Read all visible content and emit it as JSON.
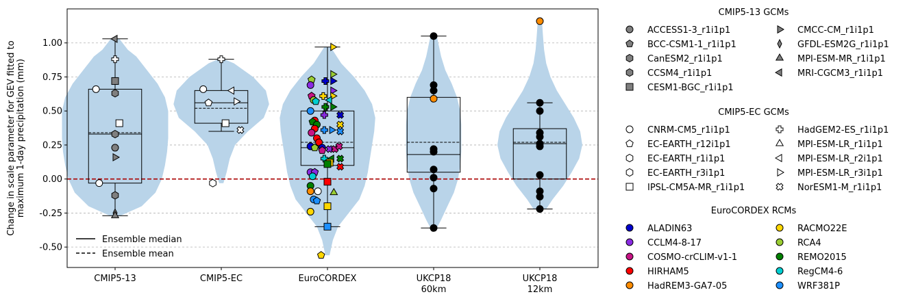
{
  "chart_data": {
    "type": "violin",
    "ylabel_lines": [
      "Change in scale parameter for GEV fitted to",
      "maximum 1-day precipitation (mm)"
    ],
    "ylim": [
      -0.65,
      1.25
    ],
    "yticks": [
      "-0.50",
      "-0.25",
      "0.00",
      "0.25",
      "0.50",
      "0.75",
      "1.00"
    ],
    "ytick_values": [
      -0.5,
      -0.25,
      0,
      0.25,
      0.5,
      0.75,
      1.0
    ],
    "grid": "y-dashed",
    "zero_line_color": "#aa0000",
    "violin_color": "#b9d4e9",
    "categories": [
      "CMIP5-13",
      "CMIP5-EC",
      "EuroCORDEX",
      "UKCP18\n60km",
      "UKCP18\n12km"
    ],
    "category_lines": [
      [
        "CMIP5-13"
      ],
      [
        "CMIP5-EC"
      ],
      [
        "EuroCORDEX"
      ],
      [
        "UKCP18",
        "60km"
      ],
      [
        "UKCP18",
        "12km"
      ]
    ],
    "boxes": [
      {
        "q1": -0.03,
        "q3": 0.66,
        "median": 0.33,
        "mean": 0.34,
        "wlo": -0.27,
        "whi": 1.03
      },
      {
        "q1": 0.41,
        "q3": 0.65,
        "median": 0.56,
        "mean": 0.52,
        "wlo": 0.35,
        "whi": 0.88
      },
      {
        "q1": 0.1,
        "q3": 0.5,
        "median": 0.23,
        "mean": 0.27,
        "wlo": -0.35,
        "whi": 0.97
      },
      {
        "q1": 0.05,
        "q3": 0.6,
        "median": 0.18,
        "mean": 0.27,
        "wlo": -0.36,
        "whi": 1.05
      },
      {
        "q1": 0.0,
        "q3": 0.37,
        "median": 0.26,
        "mean": 0.27,
        "wlo": -0.22,
        "whi": 0.56
      }
    ],
    "violins": [
      {
        "y": [
          -0.27,
          -0.2,
          -0.1,
          0.0,
          0.1,
          0.2,
          0.3,
          0.4,
          0.5,
          0.6,
          0.7,
          0.8,
          0.9,
          0.95,
          1.03
        ],
        "w": [
          0.05,
          0.25,
          0.38,
          0.44,
          0.47,
          0.49,
          0.5,
          0.5,
          0.5,
          0.47,
          0.4,
          0.3,
          0.2,
          0.12,
          0.04
        ]
      },
      {
        "y": [
          -0.03,
          0.05,
          0.15,
          0.25,
          0.35,
          0.45,
          0.55,
          0.65,
          0.75,
          0.85,
          0.88
        ],
        "w": [
          0.02,
          0.05,
          0.08,
          0.13,
          0.25,
          0.4,
          0.45,
          0.42,
          0.3,
          0.12,
          0.03
        ]
      },
      {
        "y": [
          -0.56,
          -0.45,
          -0.35,
          -0.25,
          -0.15,
          -0.05,
          0.05,
          0.15,
          0.25,
          0.35,
          0.45,
          0.55,
          0.65,
          0.75,
          0.85,
          0.97
        ],
        "w": [
          0.02,
          0.05,
          0.1,
          0.2,
          0.3,
          0.35,
          0.38,
          0.4,
          0.42,
          0.44,
          0.45,
          0.42,
          0.35,
          0.25,
          0.13,
          0.03
        ]
      },
      {
        "y": [
          -0.36,
          -0.3,
          -0.2,
          -0.1,
          0.0,
          0.1,
          0.2,
          0.3,
          0.4,
          0.5,
          0.6,
          0.7,
          0.8,
          0.9,
          1.05
        ],
        "w": [
          0.03,
          0.07,
          0.13,
          0.19,
          0.23,
          0.25,
          0.26,
          0.26,
          0.26,
          0.25,
          0.22,
          0.17,
          0.11,
          0.07,
          0.03
        ]
      },
      {
        "y": [
          -0.22,
          -0.15,
          -0.05,
          0.05,
          0.15,
          0.25,
          0.35,
          0.45,
          0.55,
          0.65,
          0.75,
          0.85,
          0.95,
          1.05,
          1.16
        ],
        "w": [
          0.06,
          0.12,
          0.22,
          0.3,
          0.37,
          0.4,
          0.38,
          0.32,
          0.24,
          0.16,
          0.1,
          0.06,
          0.04,
          0.03,
          0.02
        ]
      }
    ],
    "points": [
      {
        "g": 0,
        "dx": -0.18,
        "y": 0.66,
        "m": "circle",
        "c": "#ffffff"
      },
      {
        "g": 0,
        "dx": 0.0,
        "y": 0.72,
        "m": "square",
        "c": "#7f7f7f"
      },
      {
        "g": 0,
        "dx": 0.0,
        "y": 0.63,
        "m": "hexagon",
        "c": "#7f7f7f"
      },
      {
        "g": 0,
        "dx": 0.0,
        "y": 0.88,
        "m": "plus",
        "c": "#ffffff"
      },
      {
        "g": 0,
        "dx": 0.0,
        "y": 1.03,
        "m": "triLeft",
        "c": "#7f7f7f"
      },
      {
        "g": 0,
        "dx": 0.04,
        "y": 0.41,
        "m": "square",
        "c": "#ffffff"
      },
      {
        "g": 0,
        "dx": 0.0,
        "y": 0.33,
        "m": "hexagon",
        "c": "#7f7f7f"
      },
      {
        "g": 0,
        "dx": 0.0,
        "y": 0.23,
        "m": "circle",
        "c": "#7f7f7f"
      },
      {
        "g": 0,
        "dx": 0.0,
        "y": 0.16,
        "m": "triRight",
        "c": "#7f7f7f"
      },
      {
        "g": 0,
        "dx": -0.15,
        "y": -0.03,
        "m": "circle",
        "c": "#ffffff"
      },
      {
        "g": 0,
        "dx": 0.0,
        "y": -0.12,
        "m": "hexagon",
        "c": "#7f7f7f"
      },
      {
        "g": 0,
        "dx": 0.0,
        "y": -0.25,
        "m": "diamond",
        "c": "#7f7f7f"
      },
      {
        "g": 0,
        "dx": 0.0,
        "y": -0.27,
        "m": "triUp",
        "c": "#7f7f7f"
      },
      {
        "g": 1,
        "dx": 0.0,
        "y": 0.88,
        "m": "plus",
        "c": "#ffffff"
      },
      {
        "g": 1,
        "dx": -0.17,
        "y": 0.66,
        "m": "circle",
        "c": "#ffffff"
      },
      {
        "g": 1,
        "dx": 0.1,
        "y": 0.65,
        "m": "triLeft",
        "c": "#ffffff"
      },
      {
        "g": 1,
        "dx": 0.14,
        "y": 0.57,
        "m": "triRight",
        "c": "#ffffff"
      },
      {
        "g": 1,
        "dx": -0.12,
        "y": 0.56,
        "m": "pentagon",
        "c": "#ffffff"
      },
      {
        "g": 1,
        "dx": 0.04,
        "y": 0.41,
        "m": "square",
        "c": "#ffffff"
      },
      {
        "g": 1,
        "dx": 0.18,
        "y": 0.36,
        "m": "cross",
        "c": "#ffffff"
      },
      {
        "g": 1,
        "dx": -0.08,
        "y": -0.03,
        "m": "hexagon",
        "c": "#ffffff"
      },
      {
        "g": 2,
        "dx": 0.05,
        "y": 0.97,
        "m": "triRight",
        "c": "#ffd700"
      },
      {
        "g": 2,
        "dx": 0.05,
        "y": 0.77,
        "m": "triRight",
        "c": "#9acd32"
      },
      {
        "g": 2,
        "dx": -0.15,
        "y": 0.73,
        "m": "pentagon",
        "c": "#9acd32"
      },
      {
        "g": 2,
        "dx": -0.02,
        "y": 0.72,
        "m": "plus",
        "c": "#0000cc"
      },
      {
        "g": 2,
        "dx": 0.05,
        "y": 0.72,
        "m": "triRight",
        "c": "#0000cc"
      },
      {
        "g": 2,
        "dx": -0.16,
        "y": 0.69,
        "m": "circle",
        "c": "#8a2be2"
      },
      {
        "g": 2,
        "dx": 0.05,
        "y": 0.65,
        "m": "triRight",
        "c": "#8a2be2"
      },
      {
        "g": 2,
        "dx": -0.15,
        "y": 0.61,
        "m": "pentagon",
        "c": "#c71585"
      },
      {
        "g": 2,
        "dx": -0.04,
        "y": 0.61,
        "m": "plus",
        "c": "#ffd700"
      },
      {
        "g": 2,
        "dx": 0.05,
        "y": 0.61,
        "m": "triRight",
        "c": "#ffd700"
      },
      {
        "g": 2,
        "dx": -0.13,
        "y": 0.58,
        "m": "circle",
        "c": "#9acd32"
      },
      {
        "g": 2,
        "dx": 0.02,
        "y": 0.58,
        "m": "triLeft",
        "c": "#00ced1"
      },
      {
        "g": 2,
        "dx": -0.11,
        "y": 0.57,
        "m": "pentagon",
        "c": "#00ced1"
      },
      {
        "g": 2,
        "dx": -0.02,
        "y": 0.53,
        "m": "plus",
        "c": "#008000"
      },
      {
        "g": 2,
        "dx": 0.05,
        "y": 0.53,
        "m": "triRight",
        "c": "#008000"
      },
      {
        "g": 2,
        "dx": -0.16,
        "y": 0.5,
        "m": "circle",
        "c": "#1e90ff"
      },
      {
        "g": 2,
        "dx": -0.12,
        "y": 0.43,
        "m": "circle",
        "c": "#ff0000"
      },
      {
        "g": 2,
        "dx": -0.14,
        "y": 0.42,
        "m": "pentagon",
        "c": "#008000"
      },
      {
        "g": 2,
        "dx": -0.03,
        "y": 0.47,
        "m": "plus",
        "c": "#8a2be2"
      },
      {
        "g": 2,
        "dx": 0.12,
        "y": 0.47,
        "m": "cross",
        "c": "#0000cc"
      },
      {
        "g": 2,
        "dx": -0.1,
        "y": 0.4,
        "m": "circle",
        "c": "#008000"
      },
      {
        "g": 2,
        "dx": 0.12,
        "y": 0.4,
        "m": "cross",
        "c": "#ffd700"
      },
      {
        "g": 2,
        "dx": -0.12,
        "y": 0.37,
        "m": "circle",
        "c": "#ff0000"
      },
      {
        "g": 2,
        "dx": -0.03,
        "y": 0.36,
        "m": "plus",
        "c": "#1e90ff"
      },
      {
        "g": 2,
        "dx": 0.04,
        "y": 0.36,
        "m": "triRight",
        "c": "#1e90ff"
      },
      {
        "g": 2,
        "dx": 0.12,
        "y": 0.35,
        "m": "cross",
        "c": "#1e90ff"
      },
      {
        "g": 2,
        "dx": -0.15,
        "y": 0.34,
        "m": "circle",
        "c": "#c71585"
      },
      {
        "g": 2,
        "dx": -0.1,
        "y": 0.3,
        "m": "circle",
        "c": "#ff0000"
      },
      {
        "g": 2,
        "dx": -0.08,
        "y": 0.27,
        "m": "circle",
        "c": "#ff0000"
      },
      {
        "g": 2,
        "dx": -0.16,
        "y": 0.24,
        "m": "circle",
        "c": "#0000cc"
      },
      {
        "g": 2,
        "dx": -0.12,
        "y": 0.23,
        "m": "pentagon",
        "c": "#9acd32"
      },
      {
        "g": 2,
        "dx": -0.05,
        "y": 0.23,
        "m": "circle",
        "c": "#0000cc"
      },
      {
        "g": 2,
        "dx": 0.02,
        "y": 0.22,
        "m": "cross",
        "c": "#8a2be2"
      },
      {
        "g": 2,
        "dx": 0.07,
        "y": 0.22,
        "m": "cross",
        "c": "#c71585"
      },
      {
        "g": 2,
        "dx": 0.11,
        "y": 0.24,
        "m": "cross",
        "c": "#c71585"
      },
      {
        "g": 2,
        "dx": -0.05,
        "y": 0.21,
        "m": "pentagon",
        "c": "#c71585"
      },
      {
        "g": 2,
        "dx": -0.03,
        "y": 0.15,
        "m": "plus",
        "c": "#00ced1"
      },
      {
        "g": 2,
        "dx": 0.04,
        "y": 0.15,
        "m": "triLeft",
        "c": "#008000"
      },
      {
        "g": 2,
        "dx": 0.12,
        "y": 0.15,
        "m": "cross",
        "c": "#008000"
      },
      {
        "g": 2,
        "dx": 0.02,
        "y": 0.12,
        "m": "square",
        "c": "#ffd700"
      },
      {
        "g": 2,
        "dx": 0.0,
        "y": 0.11,
        "m": "square",
        "c": "#008000"
      },
      {
        "g": 2,
        "dx": 0.12,
        "y": 0.09,
        "m": "cross",
        "c": "#ff0000"
      },
      {
        "g": 2,
        "dx": -0.16,
        "y": 0.05,
        "m": "circle",
        "c": "#8a2be2"
      },
      {
        "g": 2,
        "dx": -0.12,
        "y": 0.05,
        "m": "pentagon",
        "c": "#8a2be2"
      },
      {
        "g": 2,
        "dx": -0.14,
        "y": 0.02,
        "m": "circle",
        "c": "#00ced1"
      },
      {
        "g": 2,
        "dx": 0.0,
        "y": -0.02,
        "m": "square",
        "c": "#ff0000"
      },
      {
        "g": 2,
        "dx": -0.16,
        "y": -0.05,
        "m": "circle",
        "c": "#008000"
      },
      {
        "g": 2,
        "dx": -0.16,
        "y": -0.09,
        "m": "circle",
        "c": "#ff8c00"
      },
      {
        "g": 2,
        "dx": -0.09,
        "y": -0.09,
        "m": "circle",
        "c": "#ffffff"
      },
      {
        "g": 2,
        "dx": 0.06,
        "y": -0.1,
        "m": "triUp",
        "c": "#9acd32"
      },
      {
        "g": 2,
        "dx": -0.13,
        "y": -0.15,
        "m": "circle",
        "c": "#1e90ff"
      },
      {
        "g": 2,
        "dx": -0.1,
        "y": -0.16,
        "m": "pentagon",
        "c": "#1e90ff"
      },
      {
        "g": 2,
        "dx": 0.0,
        "y": -0.2,
        "m": "square",
        "c": "#ffd700"
      },
      {
        "g": 2,
        "dx": -0.16,
        "y": -0.24,
        "m": "circle",
        "c": "#ffd700"
      },
      {
        "g": 2,
        "dx": 0.0,
        "y": -0.35,
        "m": "square",
        "c": "#1e90ff"
      },
      {
        "g": 2,
        "dx": -0.06,
        "y": -0.56,
        "m": "pentagon",
        "c": "#ffd700"
      },
      {
        "g": 3,
        "dx": 0.0,
        "y": 1.05,
        "m": "circle",
        "c": "#000000"
      },
      {
        "g": 3,
        "dx": 0.0,
        "y": 0.69,
        "m": "circle",
        "c": "#000000"
      },
      {
        "g": 3,
        "dx": 0.0,
        "y": 0.65,
        "m": "circle",
        "c": "#000000"
      },
      {
        "g": 3,
        "dx": 0.0,
        "y": 0.59,
        "m": "circle",
        "c": "#ff8c00"
      },
      {
        "g": 3,
        "dx": 0.0,
        "y": 0.22,
        "m": "circle",
        "c": "#000000"
      },
      {
        "g": 3,
        "dx": 0.0,
        "y": 0.2,
        "m": "circle",
        "c": "#000000"
      },
      {
        "g": 3,
        "dx": 0.0,
        "y": 0.07,
        "m": "circle",
        "c": "#000000"
      },
      {
        "g": 3,
        "dx": 0.0,
        "y": 0.01,
        "m": "circle",
        "c": "#000000"
      },
      {
        "g": 3,
        "dx": 0.0,
        "y": -0.07,
        "m": "circle",
        "c": "#000000"
      },
      {
        "g": 3,
        "dx": 0.0,
        "y": -0.36,
        "m": "circle",
        "c": "#000000"
      },
      {
        "g": 4,
        "dx": 0.0,
        "y": 1.16,
        "m": "circle",
        "c": "#ff8c00"
      },
      {
        "g": 4,
        "dx": 0.0,
        "y": 0.56,
        "m": "circle",
        "c": "#000000"
      },
      {
        "g": 4,
        "dx": 0.0,
        "y": 0.5,
        "m": "circle",
        "c": "#000000"
      },
      {
        "g": 4,
        "dx": 0.0,
        "y": 0.34,
        "m": "circle",
        "c": "#000000"
      },
      {
        "g": 4,
        "dx": 0.0,
        "y": 0.31,
        "m": "circle",
        "c": "#000000"
      },
      {
        "g": 4,
        "dx": 0.0,
        "y": 0.26,
        "m": "circle",
        "c": "#000000"
      },
      {
        "g": 4,
        "dx": 0.0,
        "y": 0.24,
        "m": "circle",
        "c": "#000000"
      },
      {
        "g": 4,
        "dx": 0.0,
        "y": 0.03,
        "m": "circle",
        "c": "#000000"
      },
      {
        "g": 4,
        "dx": 0.0,
        "y": -0.09,
        "m": "circle",
        "c": "#000000"
      },
      {
        "g": 4,
        "dx": 0.0,
        "y": -0.13,
        "m": "circle",
        "c": "#000000"
      },
      {
        "g": 4,
        "dx": 0.0,
        "y": -0.22,
        "m": "circle",
        "c": "#000000"
      }
    ],
    "inner_legend": [
      {
        "label": "Ensemble median",
        "style": "solid"
      },
      {
        "label": "Ensemble mean",
        "style": "dashed"
      }
    ],
    "legend_groups": [
      {
        "title": "CMIP5-13 GCMs",
        "items": [
          {
            "label": "ACCESS1-3_r1i1p1",
            "m": "circle",
            "c": "#7f7f7f"
          },
          {
            "label": "BCC-CSM1-1_r1i1p1",
            "m": "pentagon",
            "c": "#7f7f7f"
          },
          {
            "label": "CanESM2_r1i1p1",
            "m": "hexagon",
            "c": "#7f7f7f"
          },
          {
            "label": "CCSM4_r1i1p1",
            "m": "hexagon",
            "c": "#7f7f7f"
          },
          {
            "label": "CESM1-BGC_r1i1p1",
            "m": "square",
            "c": "#7f7f7f"
          },
          {
            "label": "CMCC-CM_r1i1p1",
            "m": "triRight",
            "c": "#7f7f7f"
          },
          {
            "label": "GFDL-ESM2G_r1i1p1",
            "m": "diamond",
            "c": "#7f7f7f"
          },
          {
            "label": "MPI-ESM-MR_r1i1p1",
            "m": "triUp",
            "c": "#7f7f7f"
          },
          {
            "label": "MRI-CGCM3_r1i1p1",
            "m": "triLeft",
            "c": "#7f7f7f"
          }
        ]
      },
      {
        "title": "CMIP5-EC GCMs",
        "items": [
          {
            "label": "CNRM-CM5_r1i1p1",
            "m": "circle",
            "c": "#ffffff"
          },
          {
            "label": "EC-EARTH_r12i1p1",
            "m": "pentagon",
            "c": "#ffffff"
          },
          {
            "label": "EC-EARTH_r1i1p1",
            "m": "hexagon",
            "c": "#ffffff"
          },
          {
            "label": "EC-EARTH_r3i1p1",
            "m": "hexagon",
            "c": "#ffffff"
          },
          {
            "label": "IPSL-CM5A-MR_r1i1p1",
            "m": "square",
            "c": "#ffffff"
          },
          {
            "label": "HadGEM2-ES_r1i1p1",
            "m": "plus",
            "c": "#ffffff"
          },
          {
            "label": "MPI-ESM-LR_r1i1p1",
            "m": "triUp",
            "c": "#ffffff"
          },
          {
            "label": "MPI-ESM-LR_r2i1p1",
            "m": "triLeft",
            "c": "#ffffff"
          },
          {
            "label": "MPI-ESM-LR_r3i1p1",
            "m": "triRight",
            "c": "#ffffff"
          },
          {
            "label": "NorESM1-M_r1i1p1",
            "m": "cross",
            "c": "#ffffff"
          }
        ]
      },
      {
        "title": "EuroCORDEX RCMs",
        "items": [
          {
            "label": "ALADIN63",
            "m": "circle",
            "c": "#0000cc"
          },
          {
            "label": "CCLM4-8-17",
            "m": "circle",
            "c": "#8a2be2"
          },
          {
            "label": "COSMO-crCLIM-v1-1",
            "m": "circle",
            "c": "#c71585"
          },
          {
            "label": "HIRHAM5",
            "m": "circle",
            "c": "#ff0000"
          },
          {
            "label": "HadREM3-GA7-05",
            "m": "circle",
            "c": "#ff8c00"
          },
          {
            "label": "RACMO22E",
            "m": "circle",
            "c": "#ffd700"
          },
          {
            "label": "RCA4",
            "m": "circle",
            "c": "#9acd32"
          },
          {
            "label": "REMO2015",
            "m": "circle",
            "c": "#008000"
          },
          {
            "label": "RegCM4-6",
            "m": "circle",
            "c": "#00ced1"
          },
          {
            "label": "WRF381P",
            "m": "circle",
            "c": "#1e90ff"
          }
        ]
      }
    ]
  }
}
